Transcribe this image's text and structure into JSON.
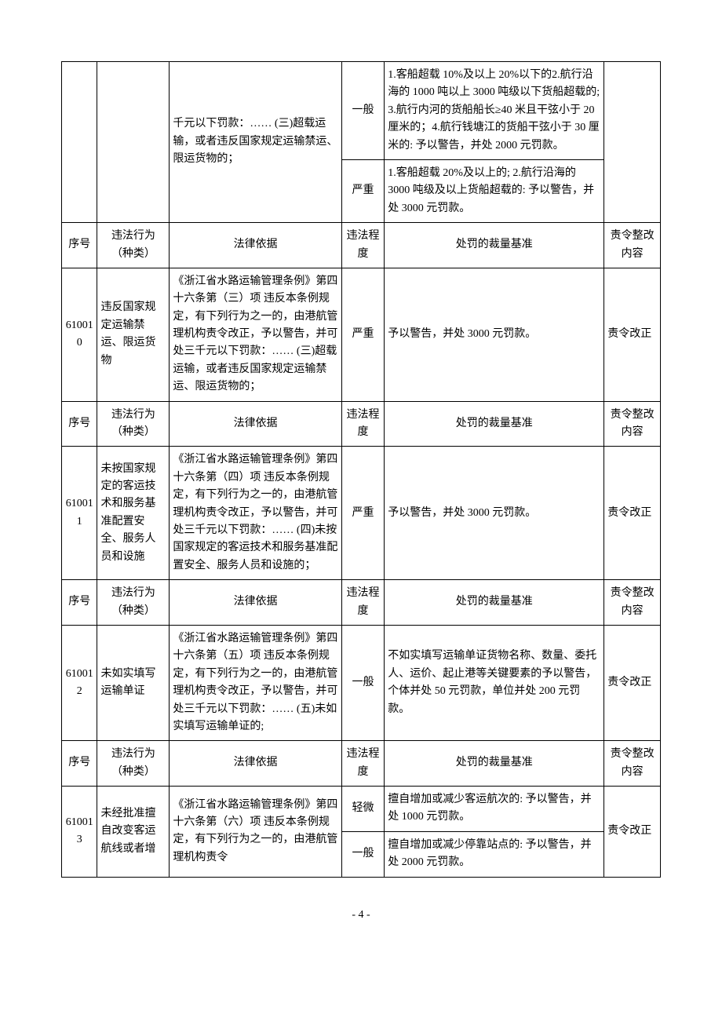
{
  "header": {
    "seq": "序号",
    "type": "违法行为（种类）",
    "law": "法律依据",
    "sev": "违法程度",
    "std": "处罚的裁量基准",
    "ord": "责令整改内容"
  },
  "row_top": {
    "law_frag": "千元以下罚款：……\n(三)超载运输，或者违反国家规定运输禁运、限运货物的；",
    "sev1": "一般",
    "std1": "1.客船超载 10%及以上 20%以下的2.航行沿海的 1000 吨以上 3000 吨级以下货船超载的; 3.航行内河的货船船长≥40 米且干弦小于 20 厘米的；4.航行钱塘江的货船干弦小于 30 厘米的: 予以警告，并处 2000 元罚款。",
    "sev2": "严重",
    "std2": "1.客船超载 20%及以上的; 2.航行沿海的 3000 吨级及以上货船超载的: 予以警告，并处 3000 元罚款。"
  },
  "r610010": {
    "seq": "610010",
    "type": "违反国家规定运输禁运、限运货物",
    "law": "《浙江省水路运输管理条例》第四十六条第（三）项 违反本条例规定，有下列行为之一的，由港航管理机构责令改正，予以警告，并可处三千元以下罚款：……\n(三)超载运输，或者违反国家规定运输禁运、限运货物的；",
    "sev": "严重",
    "std": "予以警告，并处 3000 元罚款。",
    "ord": "责令改正"
  },
  "r610011": {
    "seq": "610011",
    "type": "未按国家规定的客运技术和服务基准配置安全、服务人员和设施",
    "law": "《浙江省水路运输管理条例》第四十六条第（四）项 违反本条例规定，有下列行为之一的，由港航管理机构责令改正，予以警告，并可处三千元以下罚款：……\n(四)未按国家规定的客运技术和服务基准配置安全、服务人员和设施的；",
    "sev": "严重",
    "std": "予以警告，并处 3000 元罚款。",
    "ord": "责令改正"
  },
  "r610012": {
    "seq": "610012",
    "type": "未如实填写运输单证",
    "law": "《浙江省水路运输管理条例》第四十六条第（五）项 违反本条例规定，有下列行为之一的，由港航管理机构责令改正，予以警告，并可处三千元以下罚款：……\n(五)未如实填写运输单证的;",
    "sev": "一般",
    "std": "不如实填写运输单证货物名称、数量、委托人、运价、起止港等关键要素的予以警告，个体并处 50 元罚款，单位并处 200 元罚款。",
    "ord": "责令改正"
  },
  "r610013": {
    "seq": "610013",
    "type": "未经批准擅自改变客运航线或者增",
    "law": "《浙江省水路运输管理条例》第四十六条第（六）项 违反本条例规定，有下列行为之一的，由港航管理机构责令",
    "sev1": "轻微",
    "std1": "擅自增加或减少客运航次的: 予以警告，并处 1000 元罚款。",
    "sev2": "一般",
    "std2": "擅自增加或减少停靠站点的: 予以警告，并处 2000 元罚款。",
    "ord": "责令改正"
  },
  "footer": {
    "page": "- 4 -"
  }
}
